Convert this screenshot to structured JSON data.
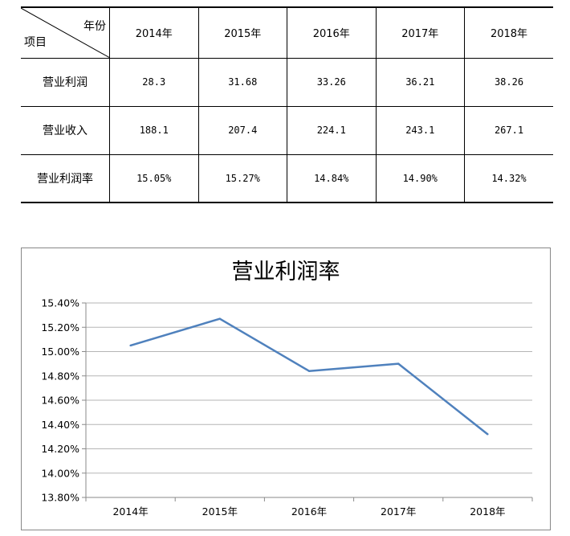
{
  "table": {
    "corner_top": "年份",
    "corner_bottom": "项目",
    "years": [
      "2014年",
      "2015年",
      "2016年",
      "2017年",
      "2018年"
    ],
    "rows": [
      {
        "label": "营业利润",
        "values": [
          "28.3",
          "31.68",
          "33.26",
          "36.21",
          "38.26"
        ]
      },
      {
        "label": "营业收入",
        "values": [
          "188.1",
          "207.4",
          "224.1",
          "243.1",
          "267.1"
        ]
      },
      {
        "label": "营业利润率",
        "values": [
          "15.05%",
          "15.27%",
          "14.84%",
          "14.90%",
          "14.32%"
        ]
      }
    ]
  },
  "chart_data": {
    "type": "line",
    "title": "营业利润率",
    "categories": [
      "2014年",
      "2015年",
      "2016年",
      "2017年",
      "2018年"
    ],
    "series": [
      {
        "values": [
          15.05,
          15.27,
          14.84,
          14.9,
          14.32
        ],
        "color": "#4f81bd"
      }
    ],
    "ylim": [
      13.8,
      15.4
    ],
    "yticks": [
      "15.40%",
      "15.20%",
      "15.00%",
      "14.80%",
      "14.60%",
      "14.40%",
      "14.20%",
      "14.00%",
      "13.80%"
    ],
    "grid": true,
    "legend": "none"
  }
}
